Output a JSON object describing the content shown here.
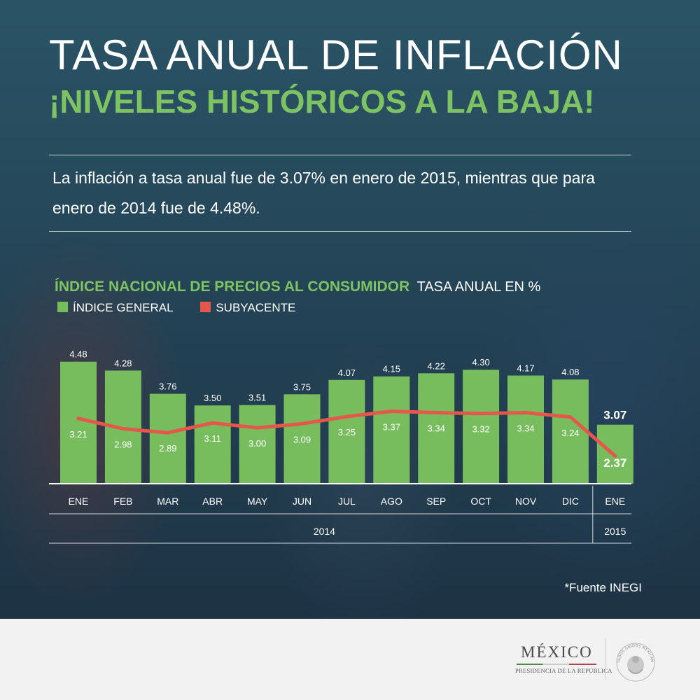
{
  "header": {
    "title": "TASA ANUAL DE INFLACIÓN",
    "subtitle": "¡NIVELES HISTÓRICOS A LA BAJA!"
  },
  "description": "La inflación a tasa anual fue de 3.07% en enero de 2015, mientras que para enero de 2014 fue de 4.48%.",
  "chart_data": {
    "type": "bar",
    "title": "ÍNDICE NACIONAL DE PRECIOS AL CONSUMIDOR",
    "unit_label": "TASA ANUAL EN %",
    "categories": [
      "ENE",
      "FEB",
      "MAR",
      "ABR",
      "MAY",
      "JUN",
      "JUL",
      "AGO",
      "SEP",
      "OCT",
      "NOV",
      "DIC",
      "ENE"
    ],
    "years": [
      {
        "label": "2014",
        "from": 0,
        "to": 11
      },
      {
        "label": "2015",
        "from": 12,
        "to": 12
      }
    ],
    "series": [
      {
        "name": "ÍNDICE GENERAL",
        "type": "bar",
        "color": "#77bd5e",
        "values": [
          4.48,
          4.28,
          3.76,
          3.5,
          3.51,
          3.75,
          4.07,
          4.15,
          4.22,
          4.3,
          4.17,
          4.08,
          3.07
        ]
      },
      {
        "name": "SUBYACENTE",
        "type": "line",
        "color": "#e4574a",
        "values": [
          3.21,
          2.98,
          2.89,
          3.11,
          3.0,
          3.09,
          3.25,
          3.37,
          3.34,
          3.32,
          3.34,
          3.24,
          2.37
        ]
      }
    ],
    "ylim": [
      1.75,
      4.6
    ],
    "grid": false,
    "legend": "top-left",
    "highlight_last": true
  },
  "source": "*Fuente INEGI",
  "footer": {
    "logo_word": "MÉXICO",
    "logo_sub": "PRESIDENCIA DE LA REPÚBLICA",
    "seal_text": "ESTADOS UNIDOS MEXICANOS"
  }
}
